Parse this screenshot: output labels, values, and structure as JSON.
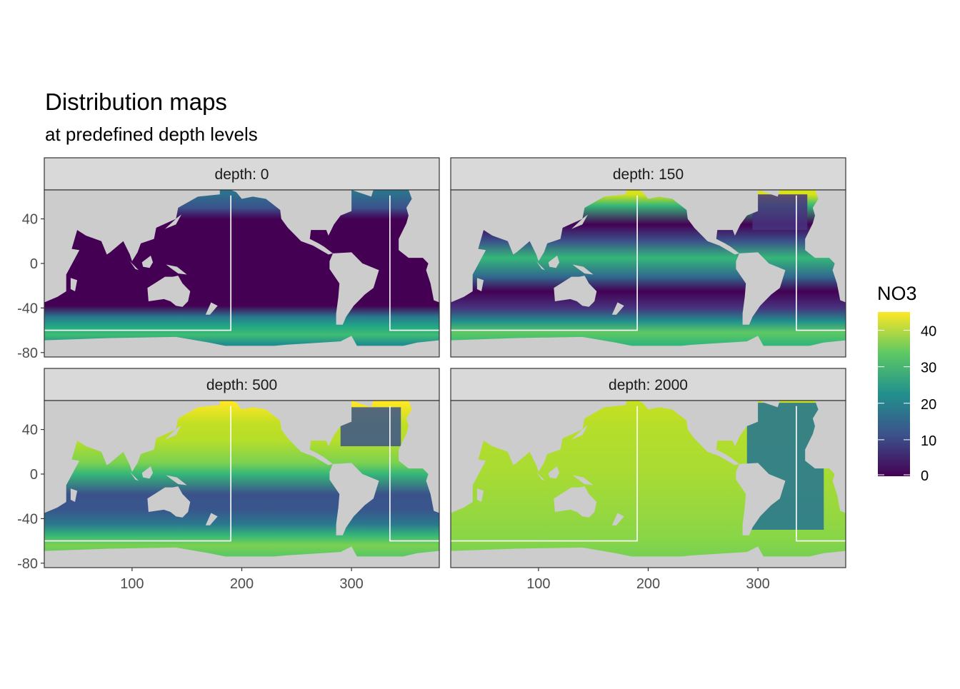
{
  "chart_data": {
    "type": "heatmap",
    "title": "Distribution maps",
    "subtitle": "at predefined depth levels",
    "xlabel": "",
    "ylabel": "",
    "xlim": [
      20,
      380
    ],
    "ylim": [
      -84,
      66
    ],
    "x_ticks": [
      100,
      200,
      300
    ],
    "x_tick_labels": [
      "100",
      "200",
      "300"
    ],
    "y_ticks": [
      40,
      0,
      -40,
      -80
    ],
    "y_tick_labels": [
      "40",
      "0",
      "-40",
      "-80"
    ],
    "grid": false,
    "land_color": "#cccccc",
    "boundary_line_color": "#ffffff",
    "facets": [
      {
        "label": "depth: 0",
        "depth": 0
      },
      {
        "label": "depth: 150",
        "depth": 150
      },
      {
        "label": "depth: 500",
        "depth": 500
      },
      {
        "label": "depth: 2000",
        "depth": 2000
      }
    ],
    "legend": {
      "title": "NO3",
      "placement": "right",
      "colormap": "viridis",
      "limits": [
        0,
        45
      ],
      "ticks": [
        0,
        10,
        20,
        30,
        40
      ],
      "tick_labels": [
        "0",
        "10",
        "20",
        "30",
        "40"
      ],
      "colors": [
        "#440154",
        "#3b528b",
        "#21908d",
        "#5dc863",
        "#fde725"
      ]
    }
  }
}
